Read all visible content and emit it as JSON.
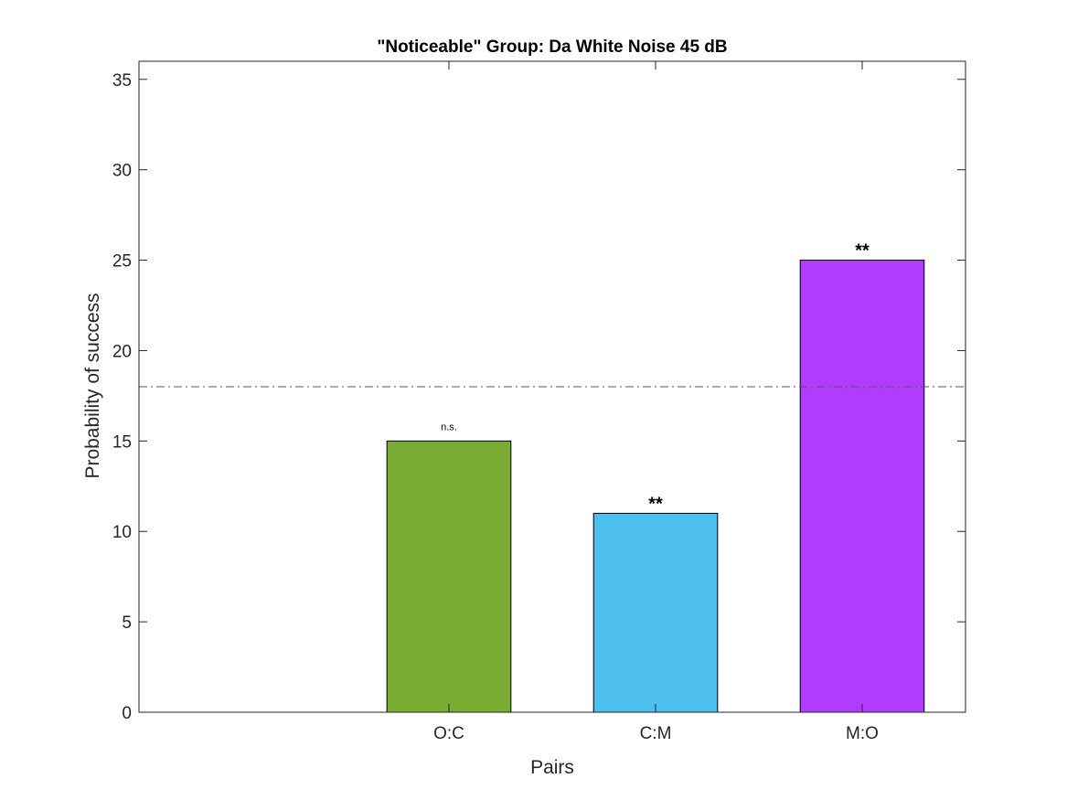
{
  "chart_data": {
    "type": "bar",
    "title": "\"Noticeable\" Group: Da White Noise 45 dB",
    "xlabel": "Pairs",
    "ylabel": "Probability of success",
    "categories": [
      "O:C",
      "C:M",
      "M:O"
    ],
    "values": [
      15,
      11,
      25
    ],
    "colors": [
      "#7aab32",
      "#4dbfec",
      "#b13cff"
    ],
    "annotations": [
      "n.s.",
      "**",
      "**"
    ],
    "reference_line": 18,
    "xlim": [
      0.5,
      4.5
    ],
    "ylim": [
      0,
      36
    ],
    "yticks": [
      0,
      5,
      10,
      15,
      20,
      25,
      30,
      35
    ],
    "grid": false
  }
}
